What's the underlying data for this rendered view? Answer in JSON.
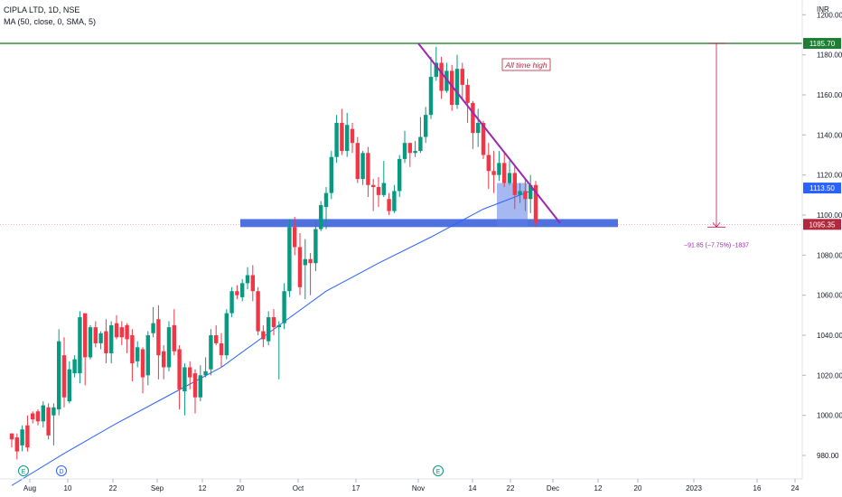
{
  "header": {
    "symbol_line": "CIPLA LTD, 1D, NSE",
    "indicator_line": "MA (50, close, 0, SMA, 5)",
    "currency": "INR"
  },
  "chart_data": {
    "type": "candlestick",
    "symbol": "CIPLA LTD",
    "interval": "1D",
    "exchange": "NSE",
    "y_axis": {
      "ticks": [
        980,
        1000,
        1020,
        1040,
        1060,
        1080,
        1100,
        1120,
        1140,
        1160,
        1180,
        1200
      ]
    },
    "x_axis": {
      "ticks": [
        "Aug",
        "10",
        "22",
        "Sep",
        "12",
        "20",
        "Oct",
        "17",
        "Nov",
        "14",
        "22",
        "Dec",
        "12",
        "20",
        "2023",
        "16",
        "24"
      ]
    },
    "price_labels": {
      "ath": "1185.70",
      "ma": "1113.50",
      "last": "1095.35"
    },
    "annotations": {
      "ath_text": "All time high",
      "measure_text": "−91.85 (−7.75%) -1837"
    },
    "event_markers": [
      "E",
      "D",
      "E"
    ],
    "colors": {
      "up": "#089981",
      "down": "#f23645",
      "ma": "#2962ff",
      "ath_line": "#388e3c",
      "trend_line": "#9c27b0",
      "support_zone": "#3d63dd",
      "box": "#5c7ee6",
      "ath_label_bg": "#1e7e34",
      "ma_label_bg": "#2962ff",
      "last_label_bg": "#b2283c"
    },
    "candles": [
      [
        991,
        988,
        991,
        984
      ],
      [
        989,
        982,
        991,
        978
      ],
      [
        985,
        993,
        995,
        982
      ],
      [
        995,
        984,
        1000,
        982
      ],
      [
        1001,
        998,
        1002,
        996
      ],
      [
        1002,
        997,
        1003,
        995
      ],
      [
        997,
        1005,
        1007,
        994
      ],
      [
        1004,
        990,
        1006,
        988
      ],
      [
        1000,
        1004,
        1006,
        985
      ],
      [
        1003,
        1037,
        1043,
        1000
      ],
      [
        1030,
        1009,
        1039,
        1004
      ],
      [
        1007,
        1023,
        1027,
        1006
      ],
      [
        1021,
        1028,
        1030,
        1019
      ],
      [
        1021,
        1049,
        1052,
        1016
      ],
      [
        1051,
        1029,
        1050,
        1015
      ],
      [
        1029,
        1044,
        1045,
        1028
      ],
      [
        1044,
        1036,
        1047,
        1034
      ],
      [
        1036,
        1041,
        1042,
        1033
      ],
      [
        1042,
        1031,
        1048,
        1026
      ],
      [
        1031,
        1045,
        1047,
        1026
      ],
      [
        1046,
        1039,
        1050,
        1038
      ],
      [
        1044,
        1039,
        1047,
        1035
      ],
      [
        1045,
        1038,
        1046,
        1031
      ],
      [
        1040,
        1026,
        1043,
        1017
      ],
      [
        1027,
        1034,
        1037,
        1024
      ],
      [
        1033,
        1019,
        1034,
        1011
      ],
      [
        1020,
        1040,
        1042,
        1015
      ],
      [
        1041,
        1046,
        1054,
        1039
      ],
      [
        1048,
        1030,
        1055,
        1018
      ],
      [
        1032,
        1024,
        1035,
        1018
      ],
      [
        1024,
        1044,
        1047,
        1022
      ],
      [
        1045,
        1032,
        1053,
        1030
      ],
      [
        1033,
        1013,
        1035,
        1003
      ],
      [
        1012,
        1024,
        1026,
        1000
      ],
      [
        1024,
        1019,
        1027,
        1013
      ],
      [
        1021,
        1009,
        1023,
        1001
      ],
      [
        1009,
        1020,
        1025,
        1007
      ],
      [
        1020,
        1022,
        1029,
        1019
      ],
      [
        1023,
        1040,
        1043,
        1020
      ],
      [
        1040,
        1036,
        1045,
        1035
      ],
      [
        1036,
        1030,
        1041,
        1024
      ],
      [
        1030,
        1051,
        1053,
        1028
      ],
      [
        1051,
        1062,
        1064,
        1049
      ],
      [
        1062,
        1060,
        1065,
        1058
      ],
      [
        1059,
        1066,
        1068,
        1057
      ],
      [
        1066,
        1070,
        1074,
        1063
      ],
      [
        1070,
        1062,
        1075,
        1057
      ],
      [
        1062,
        1042,
        1064,
        1040
      ],
      [
        1042,
        1038,
        1045,
        1034
      ],
      [
        1037,
        1049,
        1052,
        1035
      ],
      [
        1049,
        1044,
        1053,
        1040
      ],
      [
        1044,
        1045,
        1047,
        1018
      ],
      [
        1046,
        1062,
        1066,
        1043
      ],
      [
        1062,
        1094,
        1098,
        1059
      ],
      [
        1094,
        1084,
        1099,
        1080
      ],
      [
        1084,
        1064,
        1091,
        1060
      ],
      [
        1075,
        1078,
        1088,
        1058
      ],
      [
        1078,
        1076,
        1081,
        1060
      ],
      [
        1076,
        1093,
        1097,
        1072
      ],
      [
        1093,
        1105,
        1107,
        1092
      ],
      [
        1104,
        1111,
        1114,
        1093
      ],
      [
        1111,
        1129,
        1132,
        1108
      ],
      [
        1129,
        1146,
        1150,
        1126
      ],
      [
        1146,
        1132,
        1153,
        1130
      ],
      [
        1132,
        1145,
        1151,
        1129
      ],
      [
        1143,
        1136,
        1146,
        1131
      ],
      [
        1136,
        1118,
        1139,
        1116
      ],
      [
        1118,
        1131,
        1132,
        1115
      ],
      [
        1131,
        1115,
        1134,
        1109
      ],
      [
        1115,
        1114,
        1118,
        1102
      ],
      [
        1114,
        1110,
        1119,
        1104
      ],
      [
        1110,
        1116,
        1127,
        1109
      ],
      [
        1108,
        1102,
        1111,
        1100
      ],
      [
        1102,
        1112,
        1115,
        1101
      ],
      [
        1112,
        1128,
        1130,
        1109
      ],
      [
        1128,
        1136,
        1142,
        1126
      ],
      [
        1136,
        1131,
        1136,
        1124
      ],
      [
        1131,
        1132,
        1137,
        1129
      ],
      [
        1132,
        1139,
        1149,
        1131
      ],
      [
        1139,
        1150,
        1154,
        1136
      ],
      [
        1150,
        1169,
        1179,
        1148
      ],
      [
        1169,
        1176,
        1184,
        1167
      ],
      [
        1176,
        1162,
        1179,
        1158
      ],
      [
        1162,
        1172,
        1176,
        1161
      ],
      [
        1172,
        1155,
        1175,
        1152
      ],
      [
        1155,
        1173,
        1180,
        1153
      ],
      [
        1173,
        1165,
        1176,
        1158
      ],
      [
        1165,
        1156,
        1168,
        1146
      ],
      [
        1156,
        1141,
        1157,
        1133
      ],
      [
        1141,
        1146,
        1153,
        1134
      ],
      [
        1146,
        1130,
        1147,
        1128
      ],
      [
        1130,
        1122,
        1136,
        1113
      ],
      [
        1122,
        1120,
        1132,
        1111
      ],
      [
        1120,
        1126,
        1132,
        1117
      ],
      [
        1126,
        1116,
        1131,
        1114
      ],
      [
        1116,
        1121,
        1127,
        1115
      ],
      [
        1121,
        1110,
        1125,
        1103
      ],
      [
        1110,
        1112,
        1116,
        1106
      ],
      [
        1112,
        1108,
        1118,
        1102
      ],
      [
        1108,
        1115,
        1120,
        1101
      ],
      [
        1115,
        1096,
        1117,
        1094
      ]
    ],
    "ma": [
      [
        0,
        965
      ],
      [
        10,
        981
      ],
      [
        20,
        996
      ],
      [
        30,
        1010
      ],
      [
        40,
        1024
      ],
      [
        50,
        1043
      ],
      [
        60,
        1062
      ],
      [
        70,
        1076
      ],
      [
        80,
        1089
      ],
      [
        90,
        1103
      ],
      [
        100,
        1113
      ]
    ]
  }
}
